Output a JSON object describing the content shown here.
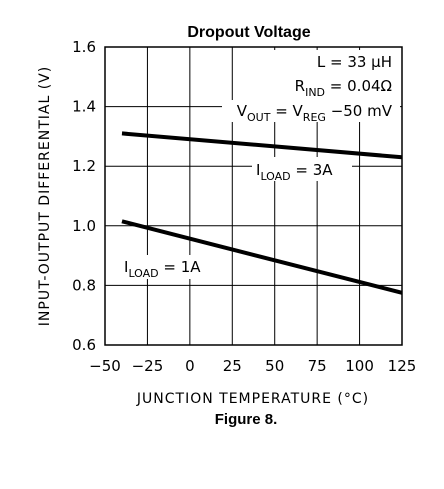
{
  "chart_data": {
    "type": "line",
    "title": "Dropout Voltage",
    "caption": "Figure 8.",
    "xlabel": "JUNCTION TEMPERATURE (°C)",
    "ylabel": "INPUT-OUTPUT DIFFERENTIAL (V)",
    "xlim": [
      -50,
      125
    ],
    "ylim": [
      0.6,
      1.6
    ],
    "xticks": [
      -50,
      -25,
      0,
      25,
      50,
      75,
      100,
      125
    ],
    "xtick_labels": [
      "−50",
      "−25",
      "0",
      "25",
      "50",
      "75",
      "100",
      "125"
    ],
    "yticks": [
      0.6,
      0.8,
      1.0,
      1.2,
      1.4,
      1.6
    ],
    "ytick_labels": [
      "0.6",
      "0.8",
      "1.0",
      "1.2",
      "1.4",
      "1.6"
    ],
    "grid": true,
    "conditions": {
      "line1": {
        "text": "L = 33 μH"
      },
      "line2": {
        "main": "R",
        "sub": "IND",
        "rest": " = 0.04Ω"
      },
      "line3": {
        "main": "V",
        "sub": "OUT",
        "mid": " = V",
        "sub2": "REG",
        "rest": " −50 mV"
      }
    },
    "series": [
      {
        "label": {
          "main": "I",
          "sub": "LOAD",
          "rest": " = 3A"
        },
        "x": [
          -40,
          125
        ],
        "y": [
          1.31,
          1.23
        ]
      },
      {
        "label": {
          "main": "I",
          "sub": "LOAD",
          "rest": " = 1A"
        },
        "x": [
          -40,
          125
        ],
        "y": [
          1.015,
          0.775
        ]
      }
    ]
  }
}
